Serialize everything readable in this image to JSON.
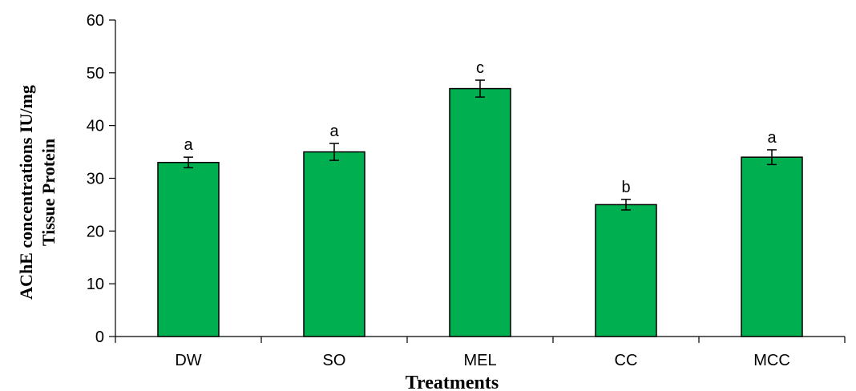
{
  "chart_data": {
    "type": "bar",
    "title": "",
    "xlabel": "Treatments",
    "ylabel_lines": [
      "AChE concentrations IU/mg",
      "Tissue Protein"
    ],
    "categories": [
      "DW",
      "SO",
      "MEL",
      "CC",
      "MCC"
    ],
    "values": [
      33,
      35,
      47,
      25,
      34
    ],
    "errors": [
      1.0,
      1.6,
      1.6,
      1.0,
      1.4
    ],
    "significance_labels": [
      "a",
      "a",
      "c",
      "b",
      "a"
    ],
    "ylim": [
      0,
      60
    ],
    "yticks": [
      0,
      10,
      20,
      30,
      40,
      50,
      60
    ],
    "bar_color": "#00b050",
    "bar_edge_color": "#000000",
    "grid": false,
    "legend": "none"
  }
}
